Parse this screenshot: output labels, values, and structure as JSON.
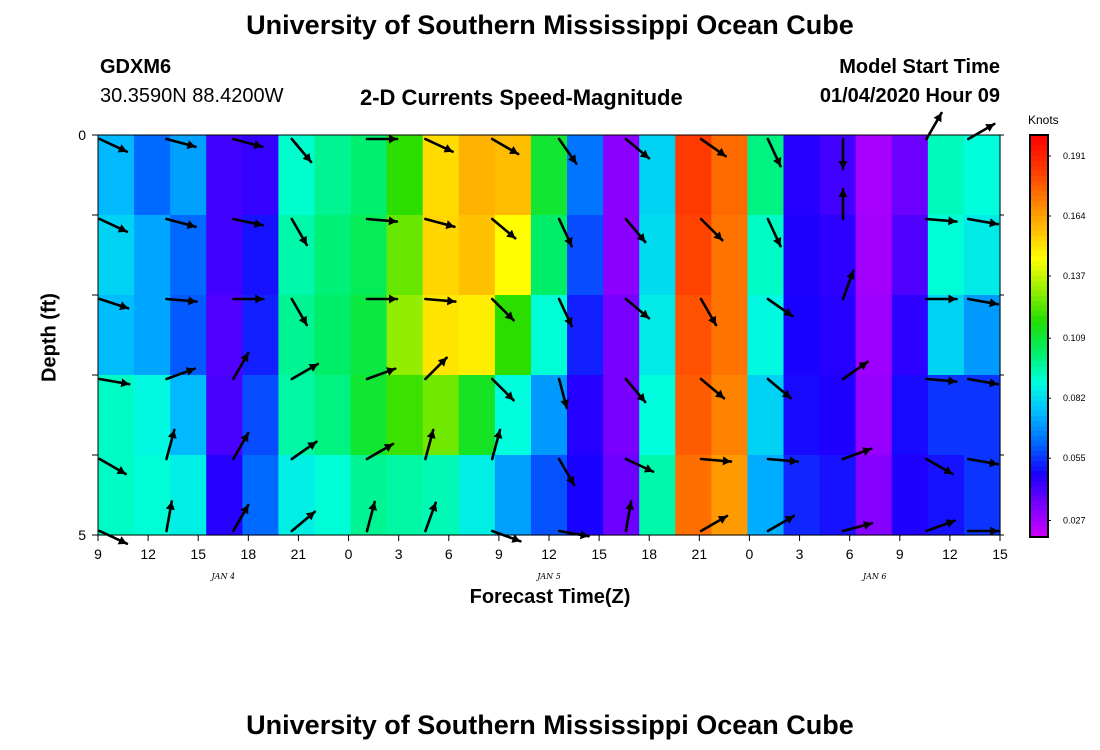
{
  "header": {
    "title": "University of Southern Mississippi Ocean Cube",
    "station_id": "GDXM6",
    "coordinates": "30.3590N 88.4200W",
    "subtitle": "2-D Currents Speed-Magnitude",
    "model_start_label": "Model Start Time",
    "model_start_value": "01/04/2020 Hour 09"
  },
  "footer": {
    "title": "University of Southern Mississippi Ocean Cube"
  },
  "chart_data": {
    "type": "heatmap",
    "title": "2-D Currents Speed-Magnitude",
    "xlabel": "Forecast Time(Z)",
    "ylabel": "Depth (ft)",
    "x_ticks": [
      "9",
      "12",
      "15",
      "18",
      "21",
      "0",
      "3",
      "6",
      "9",
      "12",
      "15",
      "18",
      "21",
      "0",
      "3",
      "6",
      "9",
      "12",
      "15"
    ],
    "day_labels": [
      {
        "label": "JAN 4",
        "hours_from_start": 7.5
      },
      {
        "label": "JAN 5",
        "hours_from_start": 27
      },
      {
        "label": "JAN 6",
        "hours_from_start": 46.5
      }
    ],
    "x_range_hours": [
      0,
      54
    ],
    "y_ticks": [
      "0",
      "5"
    ],
    "y_range_ft": [
      0,
      5
    ],
    "depth_levels_ft": [
      0.5,
      1.5,
      2.5,
      3.5,
      4.5
    ],
    "colorbar": {
      "unit": "Knots",
      "range": [
        0.02,
        0.2
      ],
      "tick_values": [
        "0.191",
        "0.164",
        "0.137",
        "0.109",
        "0.082",
        "0.055",
        "0.027"
      ]
    },
    "colors": {
      "scale": [
        "#cc00ff",
        "#7a00ff",
        "#1a00ff",
        "#0066ff",
        "#00bbff",
        "#00ffdd",
        "#00ee66",
        "#22dd00",
        "#99ee00",
        "#ffff00",
        "#ffbb00",
        "#ff7700",
        "#ff3300",
        "#ff0000"
      ],
      "arrow": "#000000"
    },
    "series": [
      {
        "depth_ft": 0.5,
        "speed_knots": [
          0.075,
          0.062,
          0.071,
          0.042,
          0.044,
          0.091,
          0.098,
          0.102,
          0.118,
          0.152,
          0.16,
          0.158,
          0.11,
          0.064,
          0.031,
          0.08,
          0.185,
          0.175,
          0.1,
          0.046,
          0.042,
          0.026,
          0.036,
          0.093,
          0.089
        ]
      },
      {
        "depth_ft": 1.5,
        "speed_knots": [
          0.08,
          0.072,
          0.062,
          0.042,
          0.05,
          0.095,
          0.101,
          0.105,
          0.125,
          0.153,
          0.157,
          0.145,
          0.103,
          0.058,
          0.031,
          0.082,
          0.183,
          0.173,
          0.092,
          0.047,
          0.045,
          0.027,
          0.04,
          0.09,
          0.085
        ]
      },
      {
        "depth_ft": 2.5,
        "speed_knots": [
          0.076,
          0.072,
          0.06,
          0.04,
          0.052,
          0.098,
          0.103,
          0.108,
          0.13,
          0.15,
          0.148,
          0.118,
          0.09,
          0.052,
          0.034,
          0.085,
          0.18,
          0.173,
          0.088,
          0.048,
          0.046,
          0.028,
          0.045,
          0.08,
          0.07
        ]
      },
      {
        "depth_ft": 3.5,
        "speed_knots": [
          0.092,
          0.088,
          0.075,
          0.041,
          0.058,
          0.096,
          0.1,
          0.11,
          0.12,
          0.126,
          0.112,
          0.089,
          0.07,
          0.046,
          0.034,
          0.089,
          0.178,
          0.17,
          0.08,
          0.049,
          0.047,
          0.029,
          0.049,
          0.055,
          0.055
        ]
      },
      {
        "depth_ft": 4.5,
        "speed_knots": [
          0.092,
          0.09,
          0.086,
          0.046,
          0.062,
          0.086,
          0.09,
          0.098,
          0.096,
          0.094,
          0.086,
          0.071,
          0.059,
          0.048,
          0.036,
          0.095,
          0.174,
          0.165,
          0.073,
          0.053,
          0.05,
          0.032,
          0.047,
          0.05,
          0.055
        ]
      }
    ],
    "vectors": {
      "hours_from_start": [
        1,
        5,
        9,
        12.5,
        17,
        20.5,
        24.5,
        28.5,
        32.5,
        37,
        41,
        45.5,
        50.5,
        53
      ],
      "rows": [
        {
          "depth_ft": 0.05,
          "angle_deg": [
            25,
            15,
            15,
            50,
            0,
            25,
            30,
            55,
            40,
            35,
            65,
            90,
            -60,
            -30
          ]
        },
        {
          "depth_ft": 1.05,
          "angle_deg": [
            25,
            15,
            12,
            60,
            5,
            15,
            40,
            65,
            50,
            45,
            65,
            -90,
            5,
            10
          ]
        },
        {
          "depth_ft": 2.05,
          "angle_deg": [
            18,
            5,
            0,
            60,
            0,
            5,
            45,
            65,
            40,
            60,
            35,
            -70,
            0,
            10
          ]
        },
        {
          "depth_ft": 3.05,
          "angle_deg": [
            10,
            -20,
            -60,
            -30,
            -20,
            -45,
            45,
            75,
            50,
            40,
            40,
            -35,
            5,
            10
          ]
        },
        {
          "depth_ft": 4.05,
          "angle_deg": [
            30,
            -75,
            -60,
            -35,
            -30,
            -75,
            -75,
            60,
            25,
            5,
            5,
            -20,
            30,
            10
          ]
        },
        {
          "depth_ft": 4.95,
          "angle_deg": [
            25,
            -80,
            -60,
            -40,
            -75,
            -70,
            20,
            10,
            -80,
            -30,
            -30,
            -15,
            -20,
            0
          ]
        }
      ]
    }
  }
}
